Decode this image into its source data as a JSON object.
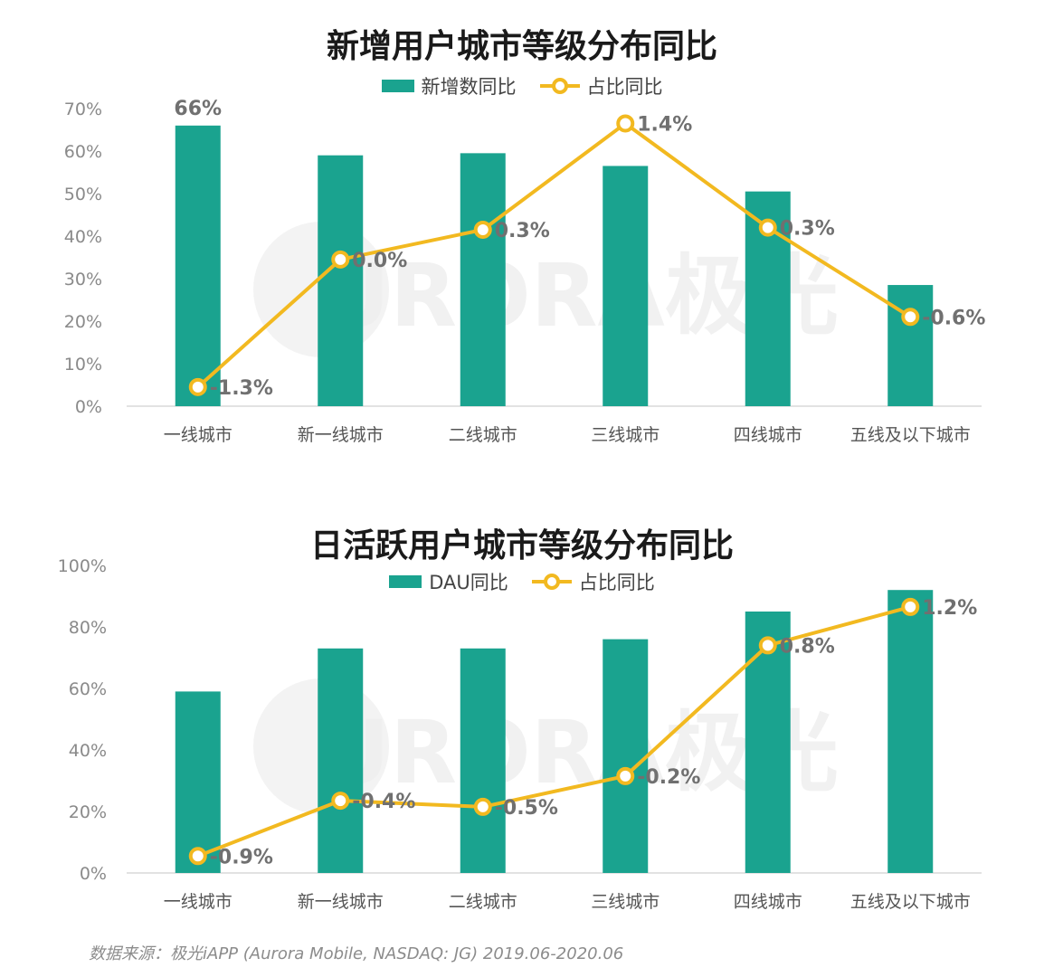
{
  "colors": {
    "bar": "#1aa38f",
    "line": "#f2b920",
    "axis_text": "#8a8a8a",
    "label_text": "#707070"
  },
  "watermark": "URORA极光",
  "footer": {
    "source": "数据来源：极光iAPP (Aurora Mobile, NASDAQ: JG) 2019.06-2020.06"
  },
  "chart_data": [
    {
      "type": "bar",
      "title": "新增用户城市等级分布同比",
      "legend_position": "top",
      "categories": [
        "一线城市",
        "新一线城市",
        "二线城市",
        "三线城市",
        "四线城市",
        "五线及以下城市"
      ],
      "ylim": [
        0,
        70
      ],
      "yticks": [
        "0%",
        "10%",
        "20%",
        "30%",
        "40%",
        "50%",
        "60%",
        "70%"
      ],
      "series": [
        {
          "name": "新增数同比",
          "kind": "bar",
          "values": [
            66,
            59,
            59.5,
            56.5,
            50.5,
            28.5
          ],
          "data_labels": [
            "66%",
            "",
            "",
            "",
            "",
            ""
          ]
        },
        {
          "name": "占比同比",
          "kind": "line",
          "values": [
            4.5,
            34.5,
            41.5,
            66.5,
            42,
            21
          ],
          "data_labels": [
            "-1.3%",
            "0.0%",
            "0.3%",
            "1.4%",
            "0.3%",
            "-0.6%"
          ]
        }
      ]
    },
    {
      "type": "bar",
      "title": "日活跃用户城市等级分布同比",
      "legend_position": "top",
      "categories": [
        "一线城市",
        "新一线城市",
        "二线城市",
        "三线城市",
        "四线城市",
        "五线及以下城市"
      ],
      "ylim": [
        0,
        100
      ],
      "yticks": [
        "0%",
        "20%",
        "40%",
        "60%",
        "80%",
        "100%"
      ],
      "series": [
        {
          "name": "DAU同比",
          "kind": "bar",
          "values": [
            59,
            73,
            73,
            76,
            85,
            92
          ],
          "data_labels": [
            "",
            "",
            "",
            "",
            "",
            ""
          ]
        },
        {
          "name": "占比同比",
          "kind": "line",
          "values": [
            5.5,
            23.5,
            21.5,
            31.5,
            74,
            86.5
          ],
          "data_labels": [
            "-0.9%",
            "-0.4%",
            "-0.5%",
            "-0.2%",
            "0.8%",
            "1.2%"
          ]
        }
      ]
    }
  ]
}
